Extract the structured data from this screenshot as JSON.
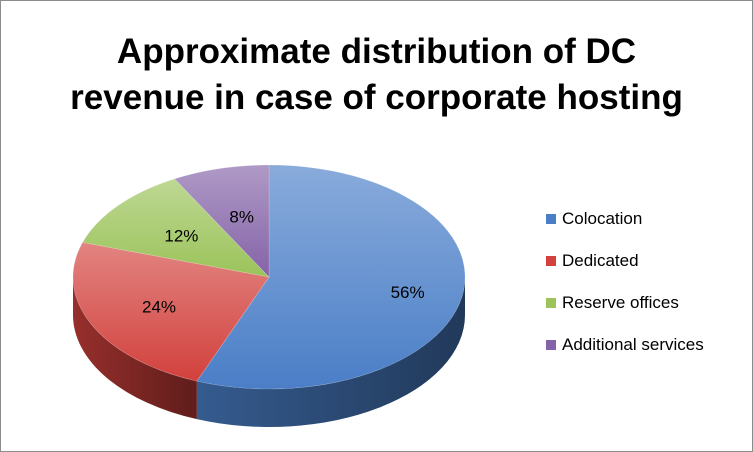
{
  "chart_data": {
    "type": "pie",
    "title": "Approximate distribution of DC\nrevenue in case of corporate hosting",
    "categories": [
      "Colocation",
      "Dedicated",
      "Reserve offices",
      "Additional services"
    ],
    "values": [
      56,
      24,
      12,
      8
    ],
    "data_labels": [
      "56%",
      "24%",
      "12%",
      "8%"
    ],
    "colors": [
      "#4a7ec7",
      "#d2413d",
      "#9bc35a",
      "#8463a8"
    ],
    "legend_position": "right",
    "style": "3d"
  }
}
